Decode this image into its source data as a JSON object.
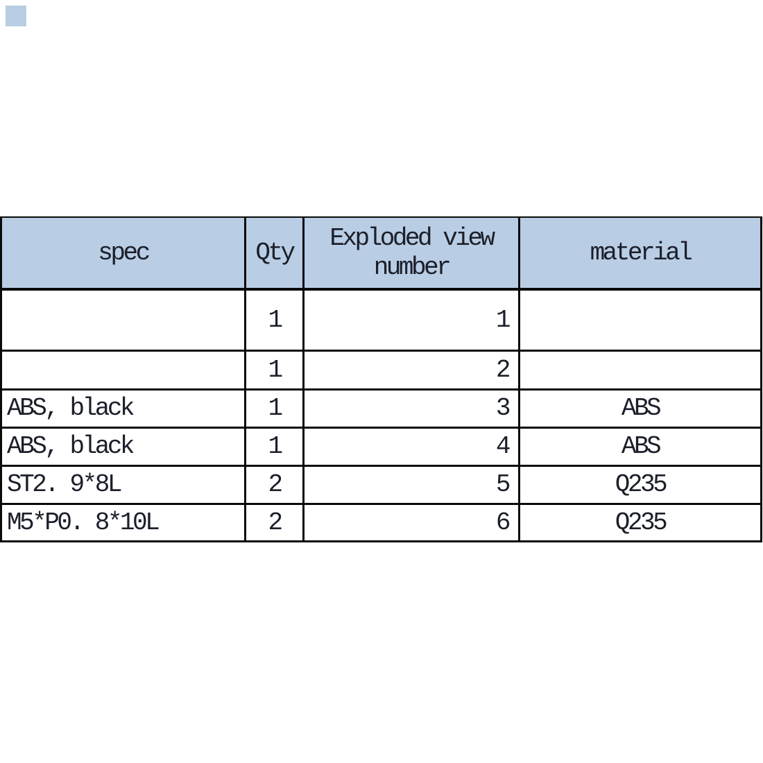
{
  "colors": {
    "page_bg": "#ffffff",
    "header_bg": "#b9cde4",
    "grid_line": "#0a0a0a",
    "text": "#1b1f2a",
    "corner_square": "#b9cde4"
  },
  "chart_data": {
    "type": "table",
    "title": "",
    "columns": [
      "spec",
      "Qty",
      "Exploded view\nnumber",
      "material"
    ],
    "rows": [
      {
        "spec": "",
        "qty": "1",
        "exploded_view_number": "1",
        "material": ""
      },
      {
        "spec": "",
        "qty": "1",
        "exploded_view_number": "2",
        "material": ""
      },
      {
        "spec": "ABS, black",
        "qty": "1",
        "exploded_view_number": "3",
        "material": "ABS"
      },
      {
        "spec": "ABS, black",
        "qty": "1",
        "exploded_view_number": "4",
        "material": "ABS"
      },
      {
        "spec": "ST2. 9*8L",
        "qty": "2",
        "exploded_view_number": "5",
        "material": "Q235"
      },
      {
        "spec": "M5*P0. 8*10L",
        "qty": "2",
        "exploded_view_number": "6",
        "material": "Q235"
      }
    ],
    "layout": {
      "grid": "all-borders",
      "header_fill": "light-blue",
      "legend": "none",
      "spec_align": "left",
      "qty_align": "center",
      "exploded_align": "right",
      "material_align": "center"
    }
  }
}
